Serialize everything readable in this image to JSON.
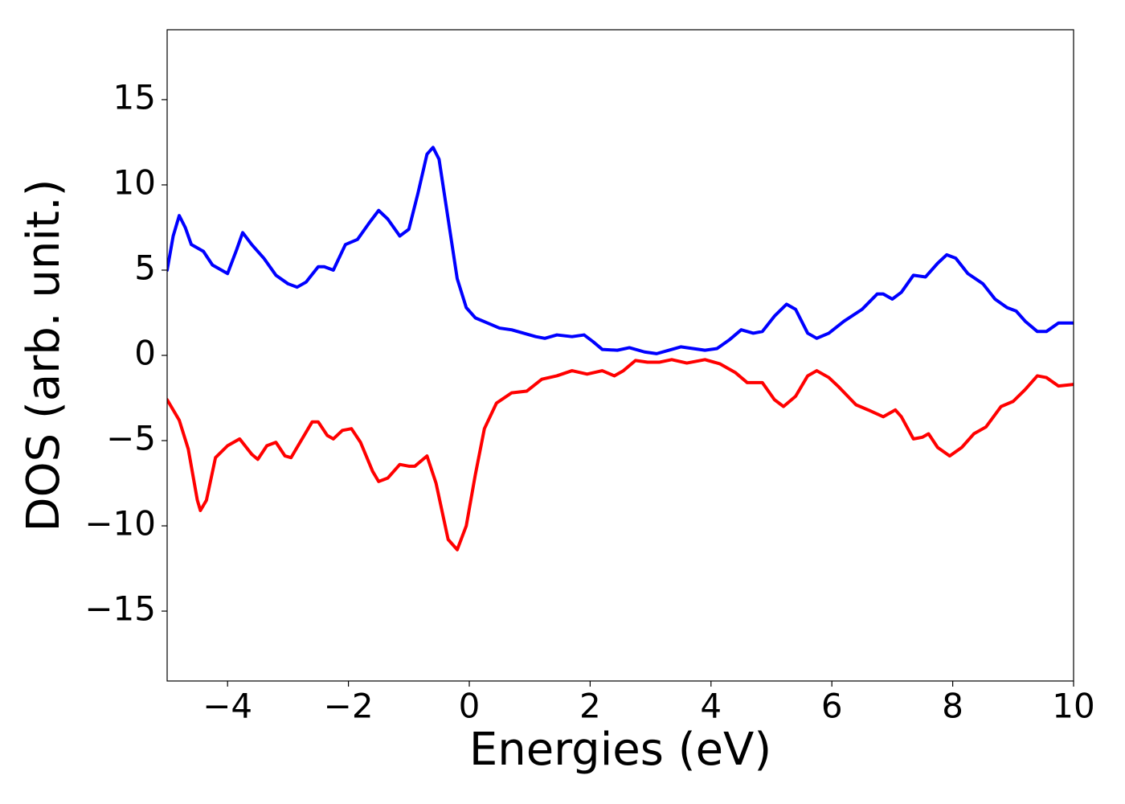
{
  "chart_data": {
    "type": "line",
    "xlabel": "Energies (eV)",
    "ylabel": "DOS (arb. unit.)",
    "xlim": [
      -5,
      10
    ],
    "ylim": [
      -19.1,
      19.1
    ],
    "xticks": [
      {
        "value": -4,
        "label": "−4"
      },
      {
        "value": -2,
        "label": "−2"
      },
      0,
      2,
      4,
      6,
      8,
      10
    ],
    "yticks": [
      {
        "value": -15,
        "label": "−15"
      },
      {
        "value": -10,
        "label": "−10"
      },
      {
        "value": -5,
        "label": "−5"
      },
      0,
      5,
      10,
      15
    ],
    "grid": false,
    "series": [
      {
        "color": "#0000ff",
        "x": [
          -5.0,
          -4.9,
          -4.8,
          -4.7,
          -4.6,
          -4.4,
          -4.25,
          -4.0,
          -3.85,
          -3.75,
          -3.6,
          -3.4,
          -3.2,
          -3.0,
          -2.85,
          -2.7,
          -2.5,
          -2.4,
          -2.25,
          -2.05,
          -1.85,
          -1.65,
          -1.5,
          -1.35,
          -1.15,
          -1.0,
          -0.85,
          -0.7,
          -0.6,
          -0.5,
          -0.35,
          -0.2,
          -0.05,
          0.1,
          0.3,
          0.5,
          0.7,
          0.9,
          1.1,
          1.25,
          1.45,
          1.7,
          1.9,
          2.05,
          2.2,
          2.45,
          2.65,
          2.9,
          3.1,
          3.3,
          3.5,
          3.7,
          3.9,
          4.1,
          4.3,
          4.5,
          4.7,
          4.85,
          5.05,
          5.25,
          5.4,
          5.6,
          5.75,
          5.95,
          6.2,
          6.5,
          6.75,
          6.85,
          7.0,
          7.15,
          7.35,
          7.55,
          7.75,
          7.9,
          8.05,
          8.25,
          8.5,
          8.7,
          8.9,
          9.05,
          9.2,
          9.4,
          9.55,
          9.75,
          10.0
        ],
        "values": [
          5.0,
          7.0,
          8.2,
          7.5,
          6.5,
          6.1,
          5.3,
          4.8,
          6.2,
          7.2,
          6.5,
          5.7,
          4.7,
          4.2,
          4.0,
          4.3,
          5.2,
          5.2,
          5.0,
          6.5,
          6.8,
          7.8,
          8.5,
          8.0,
          7.0,
          7.4,
          9.5,
          11.8,
          12.2,
          11.5,
          8.0,
          4.5,
          2.8,
          2.2,
          1.9,
          1.6,
          1.5,
          1.3,
          1.1,
          1.0,
          1.2,
          1.1,
          1.2,
          0.8,
          0.35,
          0.3,
          0.45,
          0.2,
          0.1,
          0.3,
          0.5,
          0.4,
          0.3,
          0.4,
          0.9,
          1.5,
          1.3,
          1.4,
          2.3,
          3.0,
          2.7,
          1.3,
          1.0,
          1.3,
          2.0,
          2.7,
          3.6,
          3.6,
          3.3,
          3.7,
          4.7,
          4.6,
          5.4,
          5.9,
          5.7,
          4.8,
          4.2,
          3.3,
          2.8,
          2.6,
          2.0,
          1.4,
          1.4,
          1.9,
          1.9
        ]
      },
      {
        "color": "#ff0000",
        "x": [
          -5.0,
          -4.8,
          -4.65,
          -4.5,
          -4.45,
          -4.35,
          -4.2,
          -4.0,
          -3.8,
          -3.6,
          -3.5,
          -3.35,
          -3.2,
          -3.05,
          -2.95,
          -2.8,
          -2.6,
          -2.5,
          -2.35,
          -2.25,
          -2.1,
          -1.95,
          -1.8,
          -1.6,
          -1.5,
          -1.35,
          -1.15,
          -1.0,
          -0.9,
          -0.7,
          -0.55,
          -0.35,
          -0.2,
          -0.05,
          0.1,
          0.25,
          0.45,
          0.7,
          0.95,
          1.2,
          1.45,
          1.7,
          1.95,
          2.2,
          2.4,
          2.55,
          2.75,
          2.95,
          3.15,
          3.35,
          3.6,
          3.9,
          4.15,
          4.4,
          4.6,
          4.85,
          5.05,
          5.2,
          5.4,
          5.6,
          5.75,
          5.95,
          6.1,
          6.4,
          6.6,
          6.85,
          7.05,
          7.15,
          7.35,
          7.5,
          7.6,
          7.75,
          7.95,
          8.15,
          8.35,
          8.55,
          8.8,
          9.0,
          9.2,
          9.4,
          9.55,
          9.75,
          10.0
        ],
        "values": [
          -2.6,
          -3.8,
          -5.5,
          -8.5,
          -9.1,
          -8.5,
          -6.0,
          -5.3,
          -4.9,
          -5.8,
          -6.1,
          -5.3,
          -5.1,
          -5.9,
          -6.0,
          -5.1,
          -3.9,
          -3.9,
          -4.7,
          -4.9,
          -4.4,
          -4.3,
          -5.1,
          -6.8,
          -7.4,
          -7.2,
          -6.4,
          -6.5,
          -6.5,
          -5.9,
          -7.5,
          -10.8,
          -11.4,
          -10.0,
          -7.0,
          -4.3,
          -2.8,
          -2.2,
          -2.1,
          -1.4,
          -1.2,
          -0.9,
          -1.1,
          -0.9,
          -1.2,
          -0.9,
          -0.3,
          -0.4,
          -0.4,
          -0.25,
          -0.45,
          -0.25,
          -0.5,
          -1.0,
          -1.6,
          -1.6,
          -2.6,
          -3.0,
          -2.4,
          -1.2,
          -0.9,
          -1.3,
          -1.8,
          -2.9,
          -3.2,
          -3.6,
          -3.2,
          -3.6,
          -4.9,
          -4.8,
          -4.6,
          -5.4,
          -5.9,
          -5.4,
          -4.6,
          -4.2,
          -3.0,
          -2.7,
          -2.0,
          -1.2,
          -1.3,
          -1.8,
          -1.7
        ]
      }
    ]
  }
}
